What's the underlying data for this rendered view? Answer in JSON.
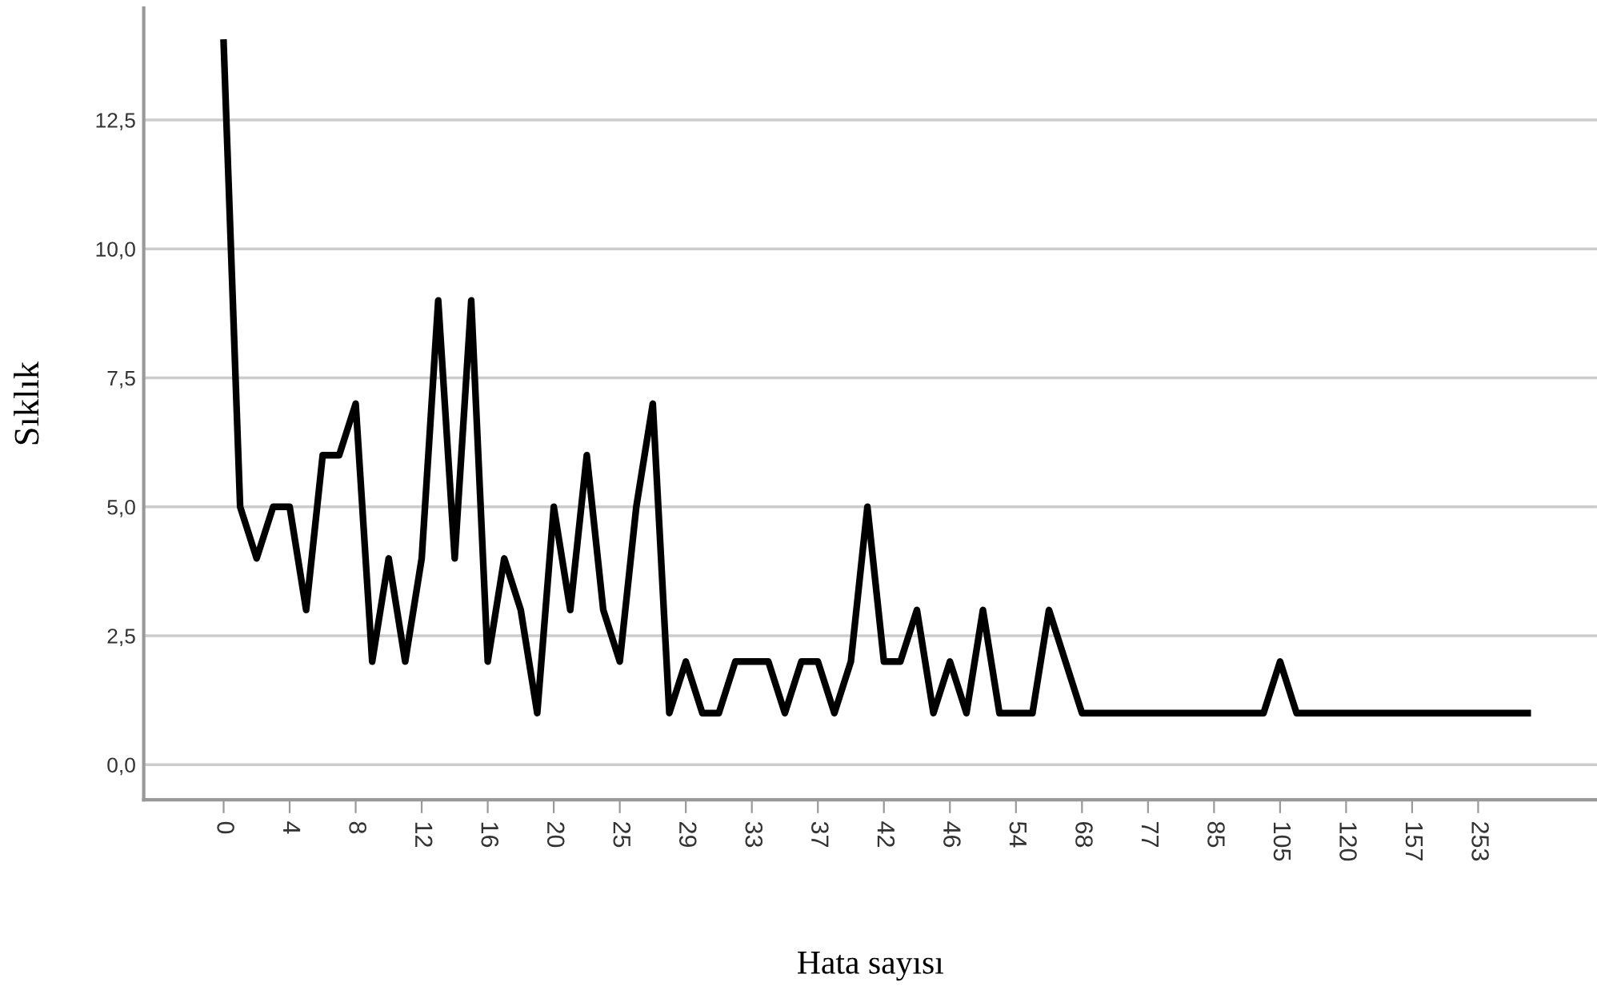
{
  "chart_data": {
    "type": "line",
    "xlabel": "Hata sayısı",
    "ylabel": "Sıklık",
    "categories": [
      "0",
      null,
      null,
      null,
      "4",
      null,
      null,
      null,
      "8",
      null,
      null,
      null,
      "12",
      null,
      null,
      null,
      "16",
      null,
      null,
      null,
      "20",
      null,
      null,
      null,
      "25",
      null,
      null,
      null,
      "29",
      null,
      null,
      null,
      "33",
      null,
      null,
      null,
      "37",
      null,
      null,
      null,
      "42",
      null,
      null,
      null,
      "46",
      null,
      null,
      null,
      "54",
      null,
      null,
      null,
      "68",
      null,
      null,
      null,
      "77",
      null,
      null,
      null,
      "85",
      null,
      null,
      null,
      "105",
      null,
      null,
      null,
      "120",
      null,
      null,
      null,
      "157",
      null,
      null,
      null,
      "253",
      null,
      null,
      null
    ],
    "series": [
      {
        "color": "#000000",
        "values": [
          14,
          5,
          4,
          5,
          5,
          3,
          6,
          6,
          7,
          2,
          4,
          2,
          4,
          9,
          4,
          9,
          2,
          4,
          3,
          1,
          5,
          3,
          6,
          3,
          2,
          5,
          7,
          1,
          2,
          1,
          1,
          2,
          2,
          2,
          1,
          2,
          2,
          1,
          2,
          5,
          2,
          2,
          3,
          1,
          2,
          1,
          3,
          1,
          1,
          1,
          3,
          2,
          1,
          1,
          1,
          1,
          1,
          1,
          1,
          1,
          1,
          1,
          1,
          1,
          2,
          1,
          1,
          1,
          1,
          1,
          1,
          1,
          1,
          1,
          1,
          1,
          1,
          1,
          1,
          1
        ]
      }
    ],
    "ylim": [
      -0.68,
      14.67
    ],
    "yticks": [
      {
        "value": 0,
        "label": "0,0"
      },
      {
        "value": 2.5,
        "label": "2,5"
      },
      {
        "value": 5,
        "label": "5,0"
      },
      {
        "value": 7.5,
        "label": "7,5"
      },
      {
        "value": 10,
        "label": "10,0"
      },
      {
        "value": 12.5,
        "label": "12,5"
      }
    ],
    "grid": "y",
    "legend": false,
    "marker": "none",
    "line_style": "solid"
  }
}
